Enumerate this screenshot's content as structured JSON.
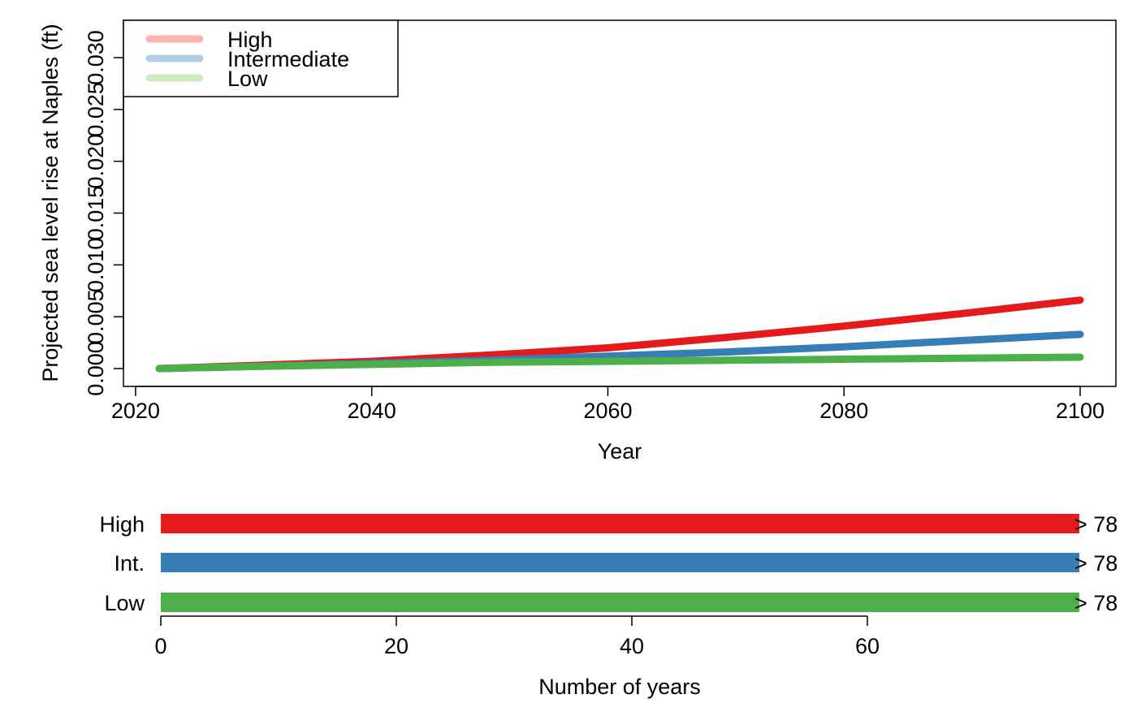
{
  "chart_data": [
    {
      "type": "line",
      "title": "",
      "xlabel": "Year",
      "ylabel": "Projected sea level rise at Naples (ft)",
      "xlim": [
        2022,
        2100
      ],
      "ylim": [
        0,
        0.033
      ],
      "x_ticks": [
        2020,
        2040,
        2060,
        2080,
        2100
      ],
      "y_ticks": [
        0.0,
        0.005,
        0.01,
        0.015,
        0.02,
        0.025,
        0.03
      ],
      "y_tick_labels": [
        "0.000",
        "0.005",
        "0.010",
        "0.015",
        "0.020",
        "0.025",
        "0.030"
      ],
      "grid": false,
      "legend_position": "top-left",
      "x": [
        2022,
        2030,
        2040,
        2050,
        2060,
        2070,
        2080,
        2090,
        2100
      ],
      "series": [
        {
          "name": "High",
          "color": "#E41A1C",
          "legend_color": "#FBB4AE",
          "values": [
            0.0,
            0.0003,
            0.0007,
            0.0013,
            0.002,
            0.003,
            0.0041,
            0.0053,
            0.0066
          ]
        },
        {
          "name": "Intermediate",
          "color": "#377EB8",
          "legend_color": "#B3CDE3",
          "values": [
            0.0,
            0.0002,
            0.0005,
            0.0008,
            0.0012,
            0.0016,
            0.0021,
            0.0027,
            0.0033
          ]
        },
        {
          "name": "Low",
          "color": "#4DAF4A",
          "legend_color": "#CCEBC5",
          "values": [
            0.0,
            0.0002,
            0.0004,
            0.0006,
            0.0007,
            0.0008,
            0.0009,
            0.001,
            0.0011
          ]
        }
      ]
    },
    {
      "type": "bar",
      "orientation": "horizontal",
      "title": "",
      "xlabel": "Number of years",
      "ylabel": "",
      "xlim": [
        0,
        78
      ],
      "x_ticks": [
        0,
        20,
        40,
        60
      ],
      "categories": [
        "High",
        "Int.",
        "Low"
      ],
      "values": [
        78,
        78,
        78
      ],
      "colors": [
        "#E41A1C",
        "#377EB8",
        "#4DAF4A"
      ],
      "data_labels": [
        "> 78",
        "> 78",
        "> 78"
      ]
    }
  ]
}
